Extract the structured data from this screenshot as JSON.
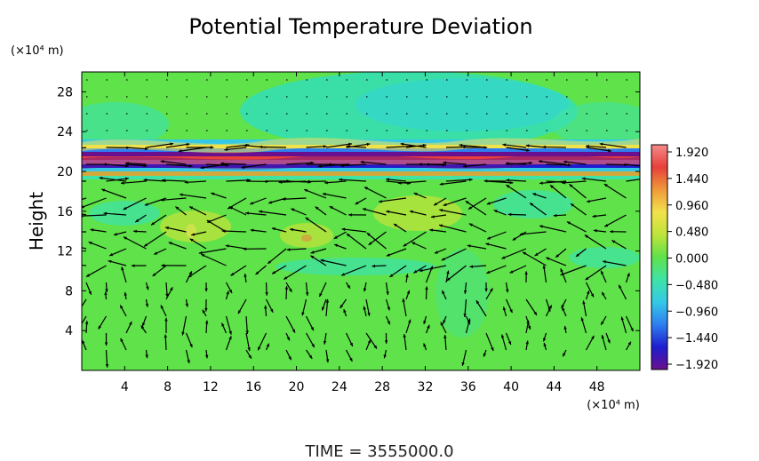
{
  "chart_data": {
    "type": "heatmap",
    "title": "Potential Temperature Deviation",
    "ylabel": "Height",
    "y_unit": "(×10⁴ m)",
    "x_unit": "(×10⁴ m)",
    "footer": "TIME  =  3555000.0",
    "xlim": [
      0,
      52
    ],
    "ylim": [
      0,
      30
    ],
    "x_ticks": [
      "4",
      "8",
      "12",
      "16",
      "20",
      "24",
      "28",
      "32",
      "36",
      "40",
      "44",
      "48"
    ],
    "y_ticks": [
      "4",
      "8",
      "12",
      "16",
      "20",
      "24",
      "28"
    ],
    "colorbar": {
      "min": -1.92,
      "max": 1.92,
      "labels": [
        "1.920",
        "1.440",
        "0.960",
        "0.480",
        "0.000",
        "−0.480",
        "−0.960",
        "−1.440",
        "−1.920"
      ],
      "colors": [
        "#6a0f8e",
        "#1d1dcf",
        "#2e7ef0",
        "#35c9e6",
        "#3fe3a6",
        "#5fe24a",
        "#bfe33a",
        "#f2e24b",
        "#f09a3a",
        "#e8403a",
        "#f48a8a"
      ]
    },
    "features": {
      "base_color": "#5fe24a",
      "strong_anomaly_band_y": [
        19.5,
        22.5
      ],
      "upper_cool_region_y": [
        23,
        29
      ],
      "vector_field": "wind arrows overlaid on grid"
    }
  }
}
